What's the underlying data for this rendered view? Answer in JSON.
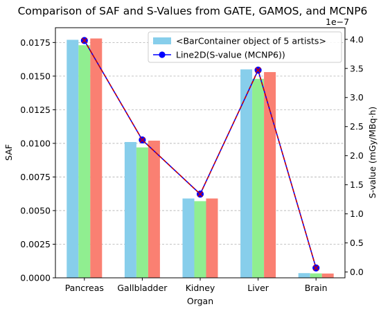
{
  "chart_data": {
    "type": "bar",
    "title": "Comparison of SAF and S-Values from GATE, GAMOS, and MCNP6",
    "xlabel": "Organ",
    "ylabel": "SAF",
    "y2label": "S-value (mGy/MBq·h)",
    "y2_offset_text": "1e−7",
    "categories": [
      "Pancreas",
      "Gallbladder",
      "Kidney",
      "Liver",
      "Brain"
    ],
    "ylim": [
      0,
      0.0186
    ],
    "yticks": [
      0.0,
      0.0025,
      0.005,
      0.0075,
      0.01,
      0.0125,
      0.015,
      0.0175
    ],
    "ytick_labels": [
      "0.0000",
      "0.0025",
      "0.0050",
      "0.0075",
      "0.0100",
      "0.0125",
      "0.0150",
      "0.0175"
    ],
    "y2lim": [
      -0.1,
      4.2
    ],
    "y2ticks": [
      0.0,
      0.5,
      1.0,
      1.5,
      2.0,
      2.5,
      3.0,
      3.5,
      4.0
    ],
    "y2tick_labels": [
      "0.0",
      "0.5",
      "1.0",
      "1.5",
      "2.0",
      "2.5",
      "3.0",
      "3.5",
      "4.0"
    ],
    "grid": "horizontal dashed",
    "legend_position": "top-right",
    "series": [
      {
        "values": [
          0.0177,
          0.0101,
          0.0059,
          0.0155,
          0.00035
        ],
        "color": "#87ceeb",
        "kind": "bar"
      },
      {
        "values": [
          0.0173,
          0.0097,
          0.0057,
          0.0148,
          0.00033
        ],
        "color": "#90ee90",
        "kind": "bar"
      },
      {
        "values": [
          0.0178,
          0.0102,
          0.0059,
          0.0153,
          0.00032
        ],
        "color": "#fa8072",
        "kind": "bar"
      }
    ],
    "lines": [
      {
        "values": [
          3.98,
          2.27,
          1.34,
          3.47,
          0.07
        ],
        "color": "#0000ff",
        "style": "solid",
        "marker": "circle",
        "axis": "right"
      },
      {
        "values": [
          3.98,
          2.27,
          1.34,
          3.47,
          0.07
        ],
        "color": "#cc0000",
        "style": "dashed",
        "marker": "x",
        "axis": "right"
      }
    ],
    "legend": [
      {
        "label": "<BarContainer object of 5 artists>",
        "swatch": "bar",
        "color": "#87ceeb"
      },
      {
        "label": "Line2D(S-value (MCNP6))",
        "swatch": "line",
        "color": "#0000ff"
      }
    ]
  }
}
